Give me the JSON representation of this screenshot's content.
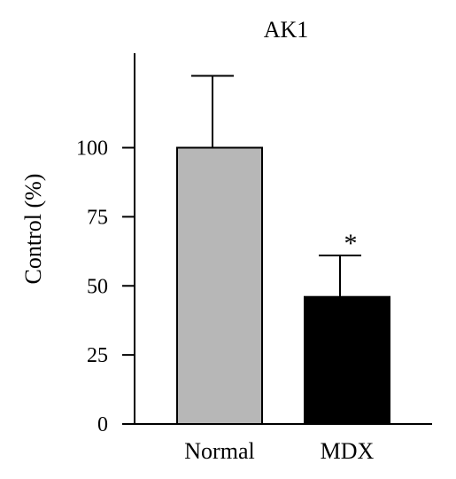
{
  "chart_data": {
    "type": "bar",
    "title": "AK1",
    "ylabel": "Control (%)",
    "xlabel": "",
    "categories": [
      "Normal",
      "MDX"
    ],
    "values": [
      100,
      46
    ],
    "errors": [
      26,
      15
    ],
    "colors": [
      "#b7b7b7",
      "#000000"
    ],
    "ylim": [
      0,
      135
    ],
    "yticks": [
      0,
      25,
      50,
      75,
      100
    ],
    "yticklabels": [
      "0",
      "25",
      "50",
      "75",
      "100"
    ],
    "annotations": [
      {
        "category": "MDX",
        "text": "*"
      }
    ],
    "grid": false,
    "legend": "none"
  }
}
